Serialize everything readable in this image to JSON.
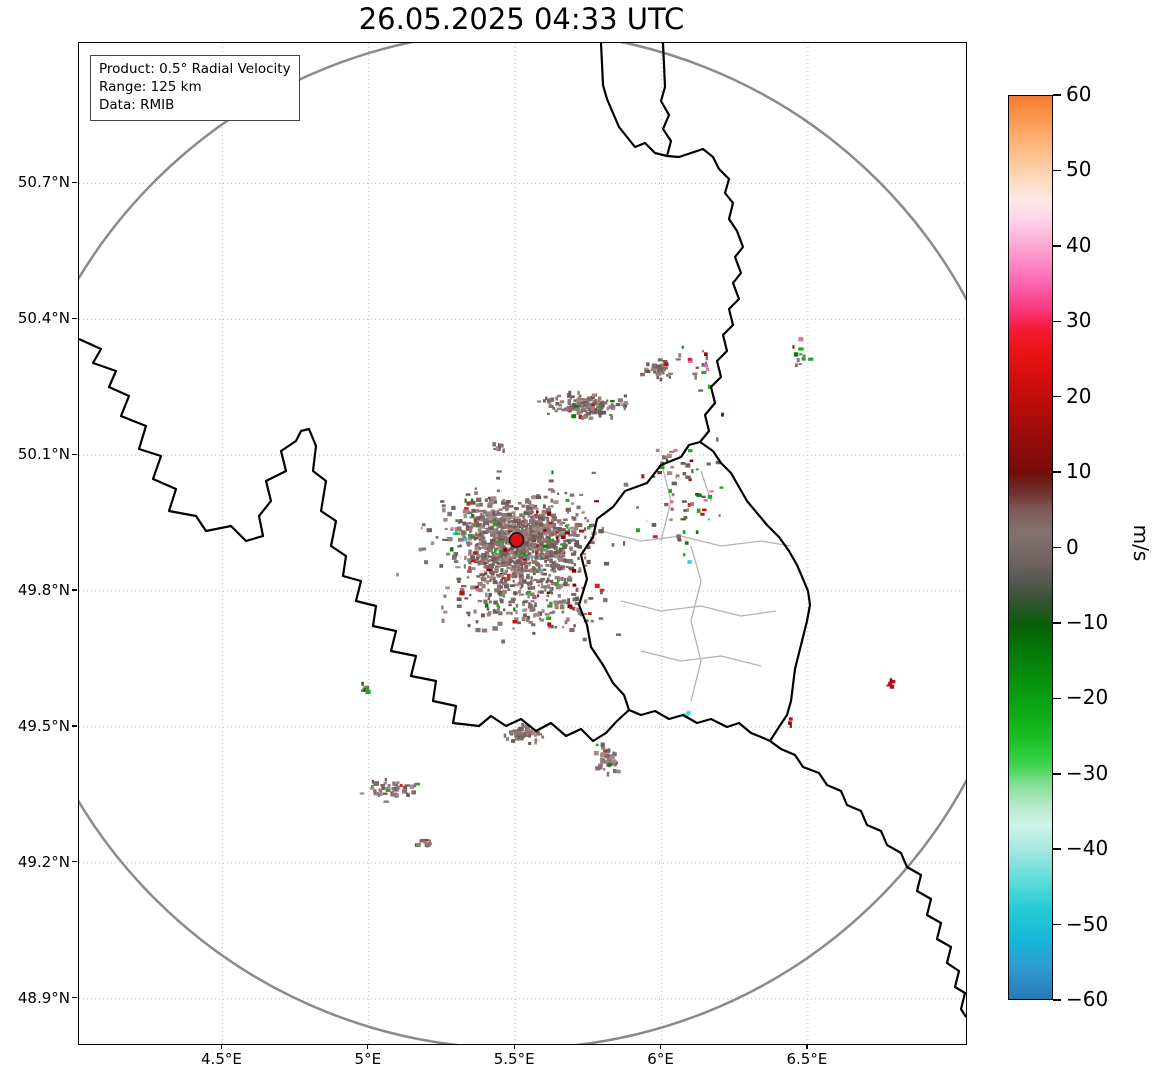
{
  "title": "26.05.2025 04:33 UTC",
  "info_box": {
    "line1": "Product: 0.5° Radial Velocity",
    "line2": "Range: 125 km",
    "line3": "Data: RMIB"
  },
  "chart_data": {
    "type": "heatmap",
    "title": "26.05.2025 04:33 UTC",
    "product": "0.5° Radial Velocity",
    "range_km": 125,
    "data_source": "RMIB",
    "grid": true,
    "lon_range": [
      4.01,
      7.04
    ],
    "lat_range": [
      48.8,
      51.01
    ],
    "x_ticks": [
      {
        "v": 4.5,
        "label": "4.5°E"
      },
      {
        "v": 5.0,
        "label": "5°E"
      },
      {
        "v": 5.5,
        "label": "5.5°E"
      },
      {
        "v": 6.0,
        "label": "6°E"
      },
      {
        "v": 6.5,
        "label": "6.5°E"
      }
    ],
    "y_ticks": [
      {
        "v": 50.7,
        "label": "50.7°N"
      },
      {
        "v": 50.4,
        "label": "50.4°N"
      },
      {
        "v": 50.1,
        "label": "50.1°N"
      },
      {
        "v": 49.8,
        "label": "49.8°N"
      },
      {
        "v": 49.5,
        "label": "49.5°N"
      },
      {
        "v": 49.2,
        "label": "49.2°N"
      },
      {
        "v": 48.9,
        "label": "48.9°N"
      }
    ],
    "colorbar": {
      "label": "m/s",
      "min": -60,
      "max": 60,
      "ticks": [
        "60",
        "50",
        "40",
        "30",
        "20",
        "10",
        "0",
        "−10",
        "−20",
        "−30",
        "−40",
        "−50",
        "−60"
      ],
      "stops": [
        {
          "v": -60,
          "c": "#2878b8"
        },
        {
          "v": -56,
          "c": "#2f9ad0"
        },
        {
          "v": -52,
          "c": "#16b8d8"
        },
        {
          "v": -48,
          "c": "#26ccd4"
        },
        {
          "v": -44,
          "c": "#62dcd8"
        },
        {
          "v": -40,
          "c": "#a6e9e2"
        },
        {
          "v": -37,
          "c": "#cff2ea"
        },
        {
          "v": -34,
          "c": "#b2e9c4"
        },
        {
          "v": -31,
          "c": "#7ade8c"
        },
        {
          "v": -29,
          "c": "#3fd44f"
        },
        {
          "v": -25,
          "c": "#17bd23"
        },
        {
          "v": -21,
          "c": "#0ba512"
        },
        {
          "v": -17,
          "c": "#078c0c"
        },
        {
          "v": -13,
          "c": "#067208"
        },
        {
          "v": -10,
          "c": "#0a5e0a"
        },
        {
          "v": -7,
          "c": "#355335"
        },
        {
          "v": -4,
          "c": "#5c5a56"
        },
        {
          "v": -2,
          "c": "#6d6260"
        },
        {
          "v": 0,
          "c": "#786b69"
        },
        {
          "v": 2,
          "c": "#837170"
        },
        {
          "v": 5,
          "c": "#7d5a58"
        },
        {
          "v": 7,
          "c": "#713632"
        },
        {
          "v": 9,
          "c": "#6e1a16"
        },
        {
          "v": 10,
          "c": "#750c0a"
        },
        {
          "v": 14,
          "c": "#930c0a"
        },
        {
          "v": 18,
          "c": "#b20b0a"
        },
        {
          "v": 22,
          "c": "#cf0d0c"
        },
        {
          "v": 26,
          "c": "#e91412"
        },
        {
          "v": 29,
          "c": "#f61a35"
        },
        {
          "v": 32,
          "c": "#f93b85"
        },
        {
          "v": 35,
          "c": "#fb64ae"
        },
        {
          "v": 38,
          "c": "#fc8cc7"
        },
        {
          "v": 41,
          "c": "#fdb4da"
        },
        {
          "v": 44,
          "c": "#fed7ea"
        },
        {
          "v": 46,
          "c": "#fde9e6"
        },
        {
          "v": 49,
          "c": "#fdd9bd"
        },
        {
          "v": 52,
          "c": "#fdc291"
        },
        {
          "v": 55,
          "c": "#fda968"
        },
        {
          "v": 58,
          "c": "#f98e43"
        },
        {
          "v": 60,
          "c": "#f47b31"
        }
      ]
    },
    "radar_site": {
      "lon": 5.505,
      "lat": 49.913,
      "marker_color": "#dd1111"
    },
    "range_ring": {
      "radius_km": 125,
      "color": "#8a8a8a"
    },
    "echo_palette": {
      "near_zero": [
        "#8d7877",
        "#7f6a69",
        "#97827c",
        "#715e5d",
        "#a28c86",
        "#877170",
        "#6d5a58"
      ],
      "accent": [
        "#2ca02c",
        "#18b018",
        "#0a7a0a",
        "#b21717",
        "#8b0000",
        "#d42222"
      ],
      "rare": [
        "#35cde0",
        "#e06ab4",
        "#efe4e2"
      ]
    },
    "echo_clusters": [
      {
        "lon": 5.51,
        "lat": 49.915,
        "rx": 0.3,
        "ry": 0.125,
        "n": 900,
        "type": "dense"
      },
      {
        "lon": 5.5,
        "lat": 49.89,
        "rx": 0.46,
        "ry": 0.21,
        "n": 330,
        "type": "sparse"
      },
      {
        "lon": 5.74,
        "lat": 50.21,
        "rx": 0.19,
        "ry": 0.035,
        "n": 150,
        "type": "dense"
      },
      {
        "lon": 5.99,
        "lat": 50.29,
        "rx": 0.07,
        "ry": 0.03,
        "n": 45,
        "type": "dense"
      },
      {
        "lon": 5.56,
        "lat": 49.77,
        "rx": 0.36,
        "ry": 0.1,
        "n": 160,
        "type": "sparse"
      },
      {
        "lon": 5.53,
        "lat": 49.485,
        "rx": 0.09,
        "ry": 0.028,
        "n": 55,
        "type": "dense"
      },
      {
        "lon": 5.81,
        "lat": 49.43,
        "rx": 0.06,
        "ry": 0.045,
        "n": 45,
        "type": "sparse"
      },
      {
        "lon": 5.07,
        "lat": 49.36,
        "rx": 0.14,
        "ry": 0.03,
        "n": 55,
        "type": "sparse"
      },
      {
        "lon": 5.19,
        "lat": 49.245,
        "rx": 0.05,
        "ry": 0.015,
        "n": 12,
        "type": "sparse"
      },
      {
        "lon": 6.07,
        "lat": 50.02,
        "rx": 0.24,
        "ry": 0.2,
        "n": 70,
        "type": "mixed"
      },
      {
        "lon": 6.12,
        "lat": 50.3,
        "rx": 0.1,
        "ry": 0.07,
        "n": 18,
        "type": "mixed"
      },
      {
        "lon": 6.47,
        "lat": 50.33,
        "rx": 0.06,
        "ry": 0.05,
        "n": 12,
        "type": "mixed"
      },
      {
        "lon": 6.79,
        "lat": 49.595,
        "rx": 0.02,
        "ry": 0.015,
        "n": 7,
        "type": "red"
      },
      {
        "lon": 4.985,
        "lat": 49.585,
        "rx": 0.02,
        "ry": 0.02,
        "n": 8,
        "type": "mixed"
      },
      {
        "lon": 6.08,
        "lat": 49.53,
        "rx": 0.02,
        "ry": 0.01,
        "n": 4,
        "type": "cyan"
      },
      {
        "lon": 6.44,
        "lat": 49.51,
        "rx": 0.015,
        "ry": 0.01,
        "n": 4,
        "type": "accent"
      },
      {
        "lon": 5.45,
        "lat": 50.115,
        "rx": 0.04,
        "ry": 0.02,
        "n": 10,
        "type": "sparse"
      }
    ]
  }
}
